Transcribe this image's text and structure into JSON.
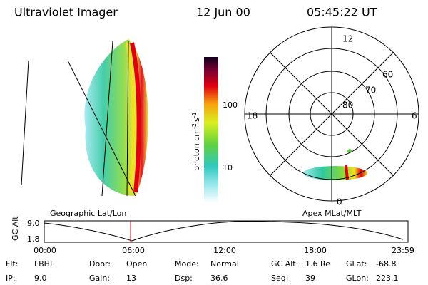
{
  "header": {
    "title": "Ultraviolet Imager",
    "date": "12 Jun 00",
    "time": "05:45:22 UT"
  },
  "colorbar": {
    "label": "photon cm",
    "exp1": "-2",
    "unit2": "s",
    "exp2": "-1",
    "ticks": [
      "100",
      "10"
    ]
  },
  "polar": {
    "mlt_labels": [
      "12",
      "18",
      "6",
      "0"
    ],
    "lat_labels": [
      "60",
      "70",
      "80"
    ]
  },
  "panels": {
    "left": "Geographic Lat/Lon",
    "right": "Apex MLat/MLT"
  },
  "altitude": {
    "label": "GC Alt",
    "yticks": [
      "9.0",
      "1.8"
    ],
    "xticks": [
      "00:00",
      "06:00",
      "12:00",
      "18:00",
      "23:59"
    ]
  },
  "status": [
    {
      "label": "Flt:",
      "value": "LBHL"
    },
    {
      "label": "IP:",
      "value": "9.0"
    },
    {
      "label": "Door:",
      "value": "Open"
    },
    {
      "label": "Gain:",
      "value": "13"
    },
    {
      "label": "Mode:",
      "value": "Normal"
    },
    {
      "label": "Dsp:",
      "value": "36.6"
    },
    {
      "label": "GC Alt:",
      "value": "1.6 Re"
    },
    {
      "label": "Seq:",
      "value": "39"
    },
    {
      "label": "GLat:",
      "value": "-68.8"
    },
    {
      "label": "GLon:",
      "value": "223.1"
    }
  ]
}
